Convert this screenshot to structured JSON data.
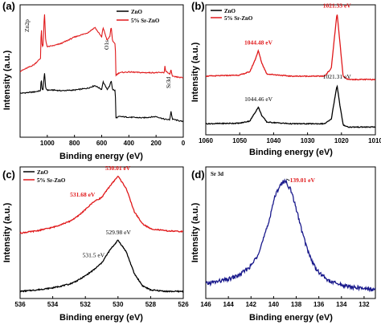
{
  "chart_data": [
    {
      "panel": "(a)",
      "type": "line",
      "xlabel": "Binding energy (eV)",
      "ylabel": "Intensity (a.u.)",
      "xlim": [
        1200,
        0
      ],
      "x_ticks": [
        1000,
        800,
        600,
        400,
        200,
        0
      ],
      "legend": [
        "ZnO",
        "5% Sr-ZnO"
      ],
      "legend_position": "top-right",
      "annotations": [
        "Zn2p",
        "O1s",
        "Sr3d"
      ],
      "series": [
        {
          "name": "ZnO",
          "color": "#000000",
          "x": [
            1200,
            1100,
            1050,
            1044,
            1038,
            1030,
            1021,
            1012,
            1000,
            950,
            900,
            800,
            700,
            650,
            600,
            590,
            560,
            540,
            530,
            520,
            500,
            495,
            470,
            400,
            300,
            200,
            140,
            100,
            90,
            80,
            0
          ],
          "y": [
            0.68,
            0.7,
            0.72,
            0.92,
            0.74,
            0.73,
            1.02,
            0.76,
            0.73,
            0.73,
            0.72,
            0.73,
            0.76,
            0.8,
            0.74,
            0.86,
            0.74,
            0.8,
            0.88,
            0.74,
            0.72,
            0.3,
            0.32,
            0.31,
            0.3,
            0.32,
            0.28,
            0.27,
            0.4,
            0.28,
            0.24
          ]
        },
        {
          "name": "5% Sr-ZnO",
          "color": "#e0191b",
          "x": [
            1200,
            1100,
            1050,
            1044,
            1038,
            1030,
            1021,
            1012,
            1000,
            950,
            900,
            800,
            700,
            650,
            600,
            590,
            560,
            540,
            530,
            520,
            500,
            495,
            470,
            400,
            300,
            200,
            140,
            135,
            130,
            100,
            90,
            80,
            0
          ],
          "y": [
            1.02,
            1.12,
            1.22,
            1.75,
            1.4,
            1.42,
            1.95,
            1.5,
            1.4,
            1.42,
            1.45,
            1.55,
            1.62,
            1.7,
            1.55,
            1.7,
            1.5,
            1.56,
            1.72,
            1.48,
            1.45,
            0.96,
            1.0,
            1.01,
            1.0,
            1.0,
            1.0,
            1.1,
            1.03,
            0.97,
            1.04,
            0.94,
            0.92
          ]
        }
      ]
    },
    {
      "panel": "(b)",
      "type": "line",
      "xlabel": "Binding energy (eV)",
      "ylabel": "Intensity (a.u.)",
      "xlim": [
        1060,
        1010
      ],
      "x_ticks": [
        1060,
        1050,
        1040,
        1030,
        1020,
        1010
      ],
      "legend": [
        "ZnO",
        "5% Sr-ZnO"
      ],
      "legend_position": "top-left",
      "peak_labels": [
        {
          "series": "ZnO",
          "x": 1044.46,
          "text": "1044.46 eV"
        },
        {
          "series": "ZnO",
          "x": 1021.31,
          "text": "1021.31 eV"
        },
        {
          "series": "5% Sr-ZnO",
          "x": 1044.48,
          "text": "1044.48 eV"
        },
        {
          "series": "5% Sr-ZnO",
          "x": 1021.33,
          "text": "1021.33 eV"
        }
      ],
      "series": [
        {
          "name": "ZnO",
          "color": "#000000",
          "x": [
            1060,
            1050,
            1047,
            1045.5,
            1044.5,
            1043.5,
            1042,
            1035,
            1025,
            1023,
            1022,
            1021.3,
            1020.5,
            1019.5,
            1018,
            1010
          ],
          "y": [
            0.2,
            0.21,
            0.25,
            0.4,
            0.5,
            0.35,
            0.23,
            0.2,
            0.2,
            0.28,
            0.65,
            0.9,
            0.55,
            0.18,
            0.14,
            0.14
          ]
        },
        {
          "name": "5% Sr-ZnO",
          "color": "#e0191b",
          "x": [
            1060,
            1050,
            1047,
            1045.5,
            1044.5,
            1043.5,
            1042,
            1035,
            1025,
            1023,
            1022,
            1021.3,
            1020.5,
            1019.5,
            1018,
            1010
          ],
          "y": [
            1.06,
            1.08,
            1.14,
            1.35,
            1.52,
            1.3,
            1.1,
            1.06,
            1.06,
            1.2,
            1.8,
            2.2,
            1.7,
            1.05,
            1.0,
            1.0
          ]
        }
      ]
    },
    {
      "panel": "(c)",
      "type": "line",
      "xlabel": "Binding energy (eV)",
      "ylabel": "Intensity (a.u.)",
      "xlim": [
        536,
        526
      ],
      "x_ticks": [
        536,
        534,
        532,
        530,
        528,
        526
      ],
      "legend": [
        "ZnO",
        "5% Sr-ZnO"
      ],
      "legend_position": "top-left",
      "peak_labels": [
        {
          "series": "ZnO",
          "x": 531.5,
          "text": "531.5 eV"
        },
        {
          "series": "ZnO",
          "x": 529.98,
          "text": "529.98 eV"
        },
        {
          "series": "5% Sr-ZnO",
          "x": 531.68,
          "text": "531.68 eV"
        },
        {
          "series": "5% Sr-ZnO",
          "x": 530.01,
          "text": "530.01 eV"
        }
      ],
      "series": [
        {
          "name": "ZnO",
          "color": "#000000",
          "x": [
            536,
            535,
            534,
            533,
            532.5,
            532,
            531.5,
            531,
            530.5,
            530,
            529.5,
            529,
            528.5,
            528,
            527,
            526
          ],
          "y": [
            0.1,
            0.12,
            0.15,
            0.2,
            0.25,
            0.32,
            0.4,
            0.5,
            0.68,
            0.82,
            0.66,
            0.35,
            0.18,
            0.12,
            0.1,
            0.1
          ]
        },
        {
          "name": "5% Sr-ZnO",
          "color": "#e0191b",
          "x": [
            536,
            535,
            534,
            533,
            532.5,
            532,
            531.5,
            531,
            530.5,
            530,
            529.5,
            529,
            528.5,
            528,
            527,
            526
          ],
          "y": [
            0.92,
            0.95,
            1.0,
            1.08,
            1.15,
            1.25,
            1.36,
            1.42,
            1.58,
            1.72,
            1.55,
            1.22,
            1.05,
            0.98,
            0.95,
            0.94
          ]
        }
      ]
    },
    {
      "panel": "(d)",
      "type": "line",
      "xlabel": "Binding energy (eV)",
      "ylabel": "Intensity (a.u.)",
      "xlim": [
        146,
        131
      ],
      "x_ticks": [
        146,
        144,
        142,
        140,
        138,
        136,
        134,
        132
      ],
      "corner_label": "Sr 3d",
      "peak_labels": [
        {
          "series": "Sr 3d",
          "x": 139.01,
          "text": "139.01 eV"
        }
      ],
      "series": [
        {
          "name": "Sr 3d",
          "color": "#1a1a8c",
          "x": [
            146,
            145,
            144,
            143,
            142,
            141.5,
            141,
            140.5,
            140,
            139.5,
            139,
            138.5,
            138,
            137.5,
            137,
            136.5,
            136,
            135,
            134,
            133,
            132,
            131
          ],
          "y": [
            0.08,
            0.1,
            0.12,
            0.16,
            0.24,
            0.32,
            0.45,
            0.6,
            0.82,
            0.95,
            1.0,
            0.92,
            0.75,
            0.55,
            0.38,
            0.26,
            0.18,
            0.1,
            0.07,
            0.05,
            0.04,
            0.03
          ]
        }
      ]
    }
  ],
  "annotation_colors": {
    "black": "#000000",
    "red": "#e0191b",
    "navy": "#1a1a8c"
  }
}
